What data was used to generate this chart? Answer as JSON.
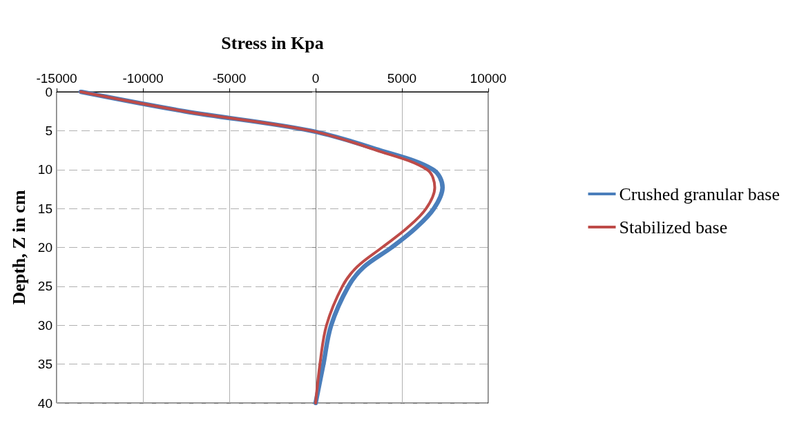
{
  "chart_data": {
    "type": "line",
    "xlabel": "Stress in Kpa",
    "ylabel": "Depth, Z in cm",
    "xlim": [
      -15000,
      10000
    ],
    "xticks": [
      -15000,
      -10000,
      -5000,
      0,
      5000,
      10000
    ],
    "ylim": [
      40,
      0
    ],
    "yticks": [
      0,
      5,
      10,
      15,
      20,
      25,
      30,
      35,
      40
    ],
    "grid": true,
    "legend": "right",
    "marker": "none",
    "line_style": "solid",
    "series": [
      {
        "name": "Crushed granular base",
        "color": "#4a7ebb",
        "x": [
          -13600,
          -7600,
          -300,
          3700,
          6800,
          7350,
          6850,
          5800,
          4400,
          2800,
          1900,
          900,
          450,
          0
        ],
        "values": [
          0,
          2.5,
          5,
          7.5,
          10,
          12.3,
          15,
          17.5,
          20,
          22.5,
          25,
          30,
          35,
          40
        ]
      },
      {
        "name": "Stabilized base",
        "color": "#be4b48",
        "x": [
          -13600,
          -7600,
          -300,
          3500,
          6450,
          6900,
          6400,
          5300,
          3850,
          2400,
          1550,
          630,
          250,
          0
        ],
        "values": [
          0,
          2.5,
          5,
          7.5,
          10,
          12.3,
          15,
          17.5,
          20,
          22.5,
          25,
          30,
          35,
          40
        ]
      }
    ]
  }
}
